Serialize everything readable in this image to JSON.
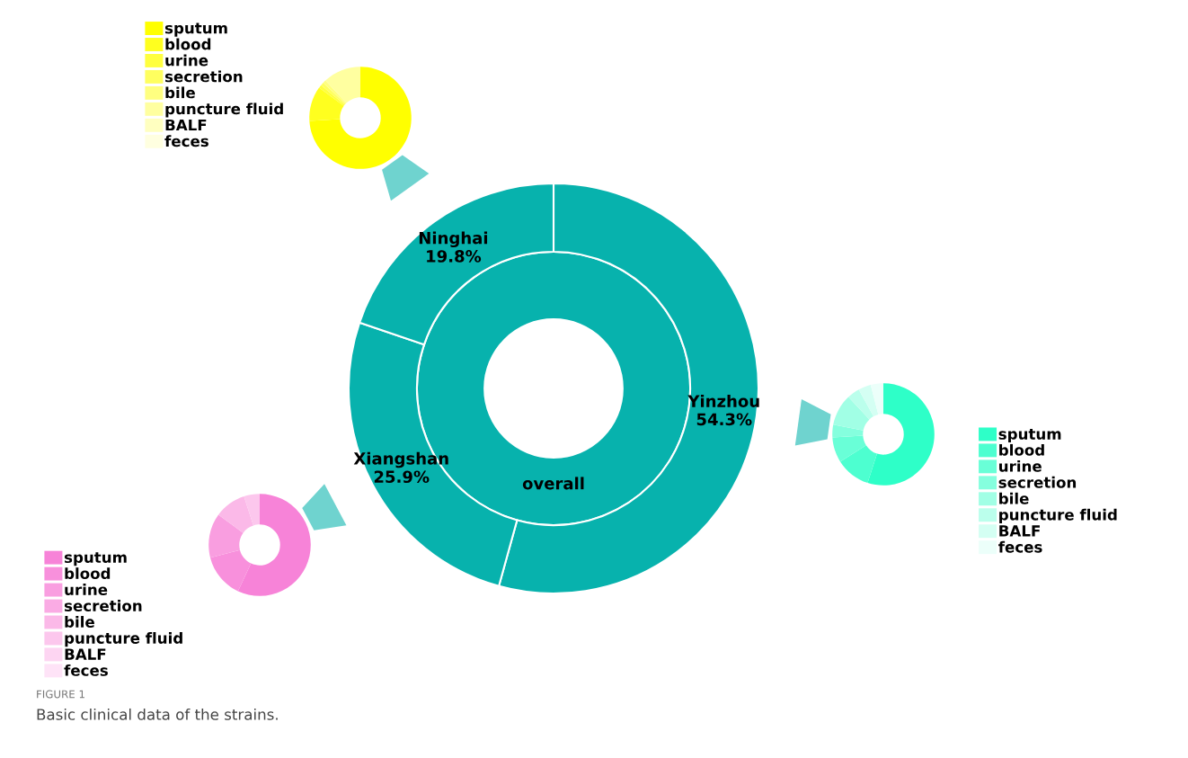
{
  "chart_data": [
    {
      "type": "donut",
      "categories": [
        "Yinzhou",
        "Xiangshan",
        "Ninghai"
      ],
      "values": [
        54.3,
        25.9,
        19.8
      ],
      "colors": [
        "#07b2ad",
        "#07b2ad",
        "#07b2ad"
      ],
      "value_labels": [
        "54.3%",
        "25.9%",
        "19.8%"
      ],
      "annotations": [
        "overall",
        "FIGURE 1",
        "Basic clinical data of the strains."
      ]
    },
    {
      "type": "donut",
      "categories": [
        "sputum",
        "blood",
        "urine",
        "secretion",
        "bile",
        "puncture fluid",
        "BALF",
        "feces"
      ],
      "values": [
        74,
        11,
        1,
        1,
        1,
        12,
        0,
        0
      ],
      "colors": [
        "#ffff00",
        "#ffff1f",
        "#ffff3f",
        "#ffff5f",
        "#ffff80",
        "#ffffa0",
        "#ffffc0",
        "#ffffe0"
      ],
      "legend": "top left"
    },
    {
      "type": "donut",
      "categories": [
        "sputum",
        "blood",
        "urine",
        "secretion",
        "bile",
        "puncture fluid",
        "BALF",
        "feces"
      ],
      "values": [
        55,
        11,
        8,
        4,
        10,
        4,
        4,
        4
      ],
      "colors": [
        "#2effc8",
        "#4dffd0",
        "#69ffd7",
        "#85ffde",
        "#a1ffe5",
        "#bbffec",
        "#d4fff3",
        "#ecfffa"
      ],
      "legend": "bottom right"
    },
    {
      "type": "donut",
      "categories": [
        "sputum",
        "blood",
        "urine",
        "secretion",
        "bile",
        "puncture fluid",
        "BALF",
        "feces"
      ],
      "values": [
        57,
        14,
        14,
        0,
        10,
        5,
        0,
        0
      ],
      "colors": [
        "#f783d8",
        "#f890dc",
        "#f99ee0",
        "#faabe4",
        "#fbb9e8",
        "#fcc7ed",
        "#fdd5f2",
        "#fee3f7"
      ],
      "legend": "bottom left"
    }
  ]
}
